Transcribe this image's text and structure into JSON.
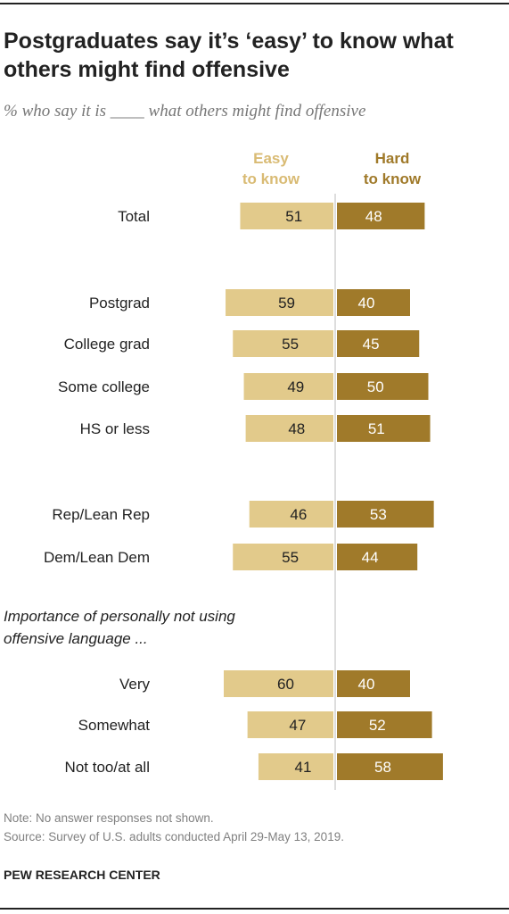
{
  "title": "Postgraduates say it’s ‘easy’ to know what others might find offensive",
  "subtitle": "% who say it is ____ what others might find offensive",
  "chart_data": {
    "type": "bar",
    "orientation": "horizontal-diverging",
    "legend": [
      {
        "label_line1": "Easy",
        "label_line2": "to know",
        "color": "#e2ca8b"
      },
      {
        "label_line1": "Hard",
        "label_line2": "to know",
        "color": "#a07a2a"
      }
    ],
    "group_heading": [
      "Importance of personally not using",
      "offensive language ..."
    ],
    "categories": [
      "Total",
      "Postgrad",
      "College grad",
      "Some college",
      "HS or less",
      "Rep/Lean Rep",
      "Dem/Lean Dem",
      "Very",
      "Somewhat",
      "Not too/at all"
    ],
    "series": [
      {
        "name": "Easy to know",
        "values": [
          51,
          59,
          55,
          49,
          48,
          46,
          55,
          60,
          47,
          41
        ]
      },
      {
        "name": "Hard to know",
        "values": [
          48,
          40,
          45,
          50,
          51,
          53,
          44,
          40,
          52,
          58
        ]
      }
    ],
    "colors": {
      "easy": "#e2ca8b",
      "hard": "#a07a2a",
      "label_easy": "#d9bb74",
      "label_hard": "#a07a2a",
      "axis": "#bbbbbb"
    }
  },
  "footer": {
    "note": "Note: No answer responses not shown.",
    "source": "Source: Survey of U.S. adults conducted April 29-May 13, 2019."
  },
  "brand": "PEW RESEARCH CENTER"
}
